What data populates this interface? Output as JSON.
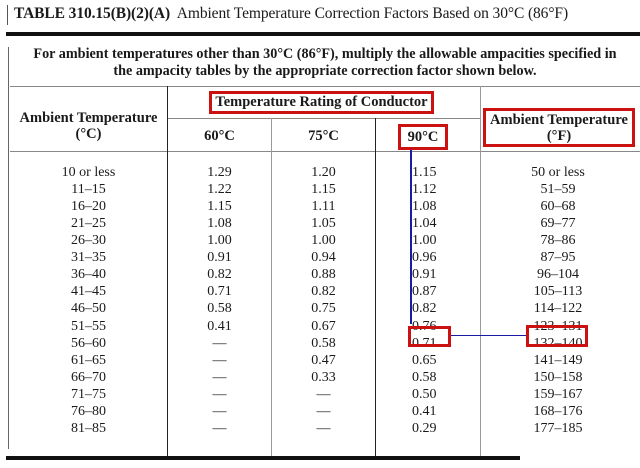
{
  "title": {
    "number": "TABLE 310.15(B)(2)(A)",
    "caption": "Ambient Temperature Correction Factors Based on 30°C (86°F)"
  },
  "intro": {
    "line1": "For ambient temperatures other than 30°C (86°F), multiply the allowable ampacities specified in",
    "line2": "the ampacity tables by the appropriate correction factor shown below."
  },
  "headers": {
    "ambient_c_line1": "Ambient Temperature",
    "ambient_c_line2": "(°C)",
    "rating_group": "Temperature Rating of Conductor",
    "col_60": "60°C",
    "col_75": "75°C",
    "col_90": "90°C",
    "ambient_f_line1": "Ambient Temperature",
    "ambient_f_line2": "(°F)"
  },
  "highlight": {
    "box_color": "#cc1111",
    "line_color": "#1a1aa8",
    "highlighted_row_index": 9,
    "highlighted_90": "0.76",
    "highlighted_f": "123–131"
  },
  "rows": [
    {
      "c": "10 or less",
      "t60": "1.29",
      "t75": "1.20",
      "t90": "1.15",
      "f": "50 or less"
    },
    {
      "c": "11–15",
      "t60": "1.22",
      "t75": "1.15",
      "t90": "1.12",
      "f": "51–59"
    },
    {
      "c": "16–20",
      "t60": "1.15",
      "t75": "1.11",
      "t90": "1.08",
      "f": "60–68"
    },
    {
      "c": "21–25",
      "t60": "1.08",
      "t75": "1.05",
      "t90": "1.04",
      "f": "69–77"
    },
    {
      "c": "26–30",
      "t60": "1.00",
      "t75": "1.00",
      "t90": "1.00",
      "f": "78–86"
    },
    {
      "c": "31–35",
      "t60": "0.91",
      "t75": "0.94",
      "t90": "0.96",
      "f": "87–95"
    },
    {
      "c": "36–40",
      "t60": "0.82",
      "t75": "0.88",
      "t90": "0.91",
      "f": "96–104"
    },
    {
      "c": "41–45",
      "t60": "0.71",
      "t75": "0.82",
      "t90": "0.87",
      "f": "105–113"
    },
    {
      "c": "46–50",
      "t60": "0.58",
      "t75": "0.75",
      "t90": "0.82",
      "f": "114–122"
    },
    {
      "c": "51–55",
      "t60": "0.41",
      "t75": "0.67",
      "t90": "0.76",
      "f": "123–131"
    },
    {
      "c": "56–60",
      "t60": "—",
      "t75": "0.58",
      "t90": "0.71",
      "f": "132–140"
    },
    {
      "c": "61–65",
      "t60": "—",
      "t75": "0.47",
      "t90": "0.65",
      "f": "141–149"
    },
    {
      "c": "66–70",
      "t60": "—",
      "t75": "0.33",
      "t90": "0.58",
      "f": "150–158"
    },
    {
      "c": "71–75",
      "t60": "—",
      "t75": "—",
      "t90": "0.50",
      "f": "159–167"
    },
    {
      "c": "76–80",
      "t60": "—",
      "t75": "—",
      "t90": "0.41",
      "f": "168–176"
    },
    {
      "c": "81–85",
      "t60": "—",
      "t75": "—",
      "t90": "0.29",
      "f": "177–185"
    }
  ]
}
